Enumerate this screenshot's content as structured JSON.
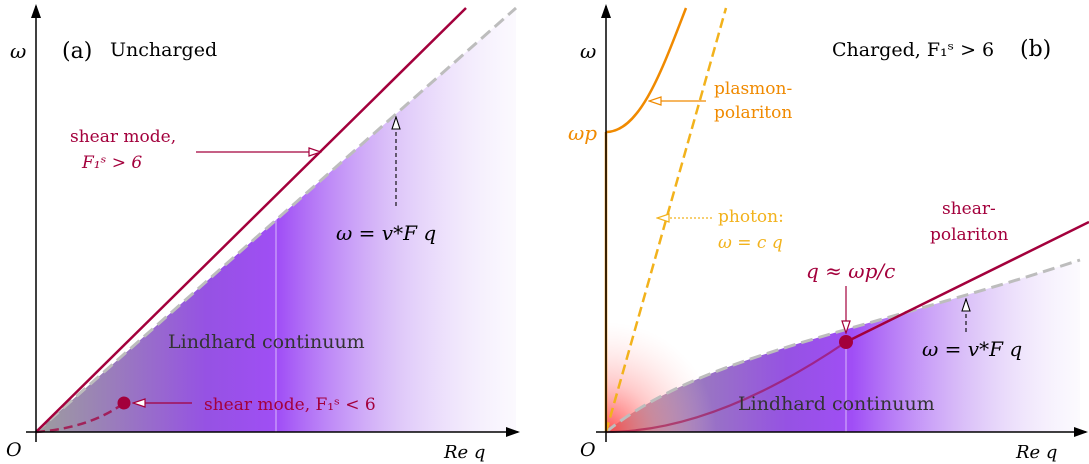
{
  "panel_a": {
    "tag": "(a)",
    "title": "Uncharged",
    "axis_y": "ω",
    "axis_x": "Re q",
    "origin": "O",
    "shear_upper_l1": "shear mode,",
    "shear_upper_l2": "F₁ˢ > 6",
    "shear_lower": "shear mode, F₁ˢ < 6",
    "edge_label": "ω = v*F q",
    "continuum": "Lindhard continuum"
  },
  "panel_b": {
    "tag": "(b)",
    "title": "Charged, F₁ˢ > 6",
    "axis_y": "ω",
    "axis_x": "Re q",
    "origin": "O",
    "omega_p": "ωp",
    "plasmon_l1": "plasmon-",
    "plasmon_l2": "polariton",
    "photon_l1": "photon:",
    "photon_l2": "ω = c q",
    "shear_l1": "shear-",
    "shear_l2": "polariton",
    "crossing": "q ≈ ωp/c",
    "edge_label": "ω = v*F q",
    "continuum": "Lindhard continuum"
  },
  "colors": {
    "shear": "#a3003c",
    "plasmon": "#f08a00",
    "photon": "#f2b21c",
    "continuum": "#8a2be2",
    "edge": "#bbbbbb"
  }
}
